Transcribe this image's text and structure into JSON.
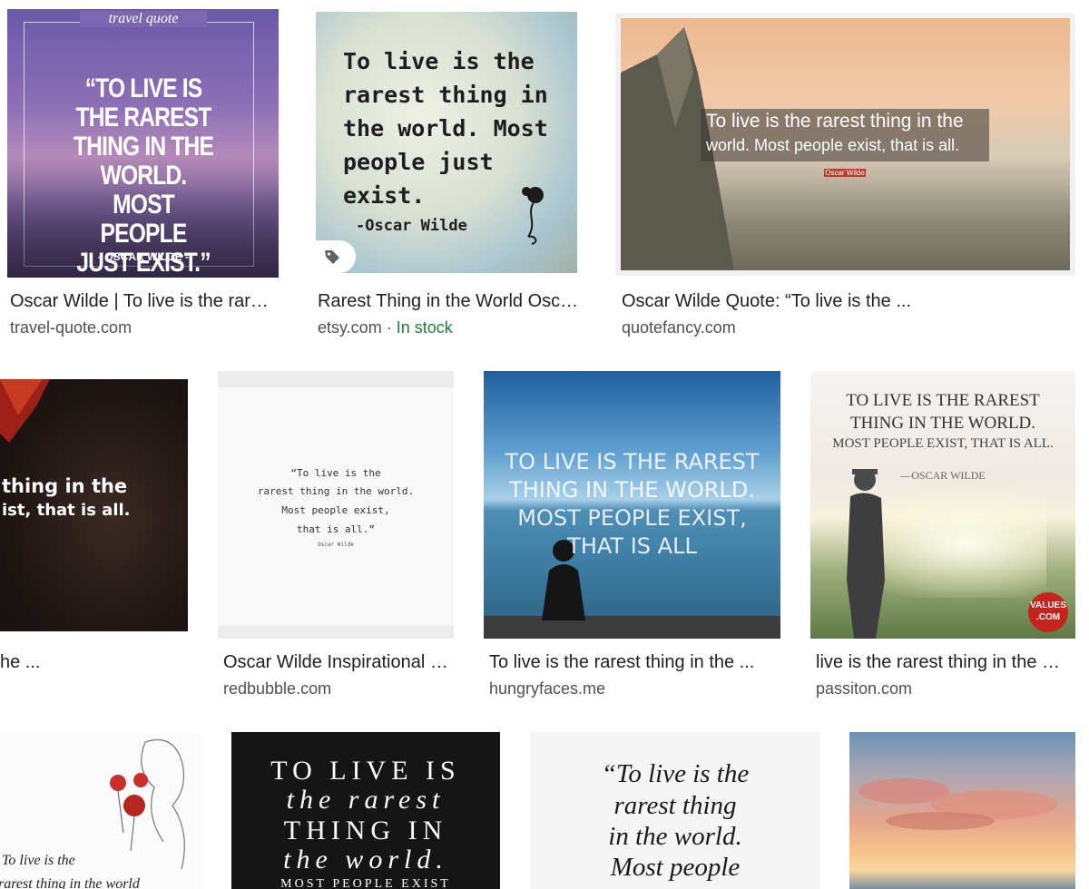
{
  "results": [
    {
      "title": "Oscar Wilde | To live is the rare…",
      "source": "travel-quote.com",
      "image_text": {
        "logo": "travel  quote",
        "quote": "“TO LIVE IS THE RAREST THING IN THE WORLD. MOST PEOPLE JUST EXIST.”",
        "author": "- OSCAR WILDE -"
      }
    },
    {
      "title": "Rarest Thing in the World Osc…",
      "source": "etsy.com",
      "separator": "·",
      "availability": "In stock",
      "image_text": {
        "quote": "To live is the rarest thing in the world. Most people just exist.",
        "author": "-Oscar Wilde"
      }
    },
    {
      "title": "Oscar Wilde Quote: “To live is the ...",
      "source": "quotefancy.com",
      "image_text": {
        "line1": "To live is the rarest thing in the",
        "line2": "world. Most people exist, that is all.",
        "badge": "Oscar Wilde"
      }
    },
    {
      "title": "he ...",
      "source": "",
      "image_text": {
        "line1": "thing in the",
        "line2": "ist, that is all."
      }
    },
    {
      "title": "Oscar Wilde Inspirational …",
      "source": "redbubble.com",
      "image_text": {
        "line1": "“To live is the",
        "line2": "rarest thing in the world.",
        "line3": "Most people exist,",
        "line4": "that is all.”",
        "author": "Oscar Wilde"
      }
    },
    {
      "title": "To live is the rarest thing in the ...",
      "source": "hungryfaces.me",
      "image_text": {
        "line1": "TO LIVE IS THE RAREST",
        "line2": "THING IN THE WORLD.",
        "line3": "MOST PEOPLE EXIST,",
        "line4": "THAT IS ALL"
      }
    },
    {
      "title": "live is the rarest thing in the …",
      "source": "passiton.com",
      "image_text": {
        "line1": "TO LIVE IS THE RAREST",
        "line2": "THING IN THE WORLD.",
        "line3": "MOST PEOPLE EXIST, THAT IS ALL.",
        "author": "—OSCAR WILDE",
        "badge": "VALUES .COM"
      }
    },
    {
      "image_text": {
        "line1": "To live is the",
        "line2": "rarest thing in the world"
      }
    },
    {
      "image_text": {
        "line1": "TO LIVE IS",
        "line2": "the rarest",
        "line3": "THING IN",
        "line4": "the world.",
        "line5": "MOST PEOPLE EXIST"
      }
    },
    {
      "image_text": {
        "line1": "“To live is the",
        "line2": "rarest thing",
        "line3": "in the world.",
        "line4": "Most people"
      }
    },
    {
      "image_text": {}
    }
  ]
}
